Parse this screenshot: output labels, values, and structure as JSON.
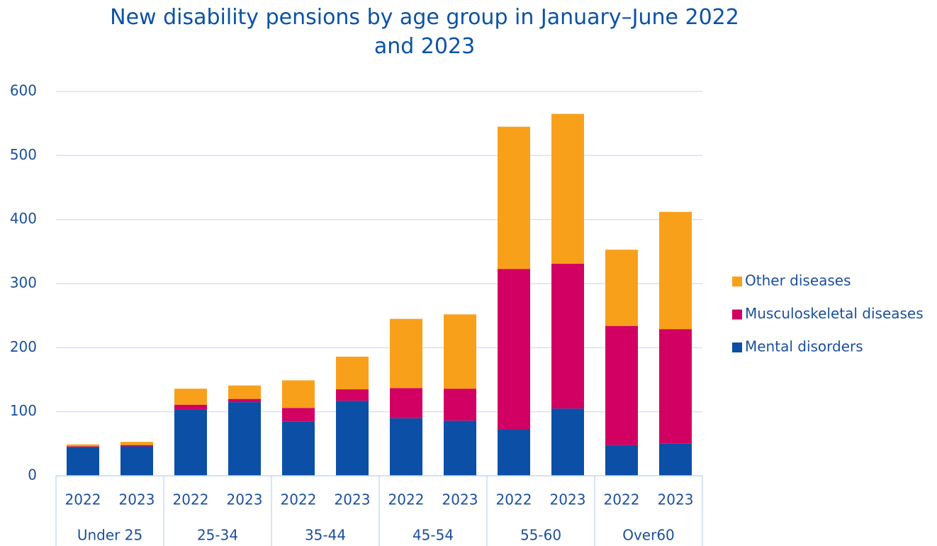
{
  "chart_data": {
    "type": "stacked_bar",
    "title": "New disability pensions by age group in January–June 2022 and 2023",
    "categories": [
      "2022",
      "2023",
      "2022",
      "2023",
      "2022",
      "2023",
      "2022",
      "2023",
      "2022",
      "2023",
      "2022",
      "2023"
    ],
    "groups": [
      "Under 25",
      "25-34",
      "35-44",
      "45-54",
      "55-60",
      "Over60"
    ],
    "series": [
      {
        "name": "Mental disorders",
        "color": "#0b4fa6",
        "values": [
          45,
          46,
          103,
          115,
          85,
          117,
          90,
          86,
          73,
          105,
          48,
          50
        ]
      },
      {
        "name": "Musculoskeletal diseases",
        "color": "#d10062",
        "values": [
          1,
          2,
          8,
          5,
          21,
          18,
          47,
          50,
          250,
          226,
          186,
          179
        ]
      },
      {
        "name": "Other diseases",
        "color": "#f9a01b",
        "values": [
          3,
          5,
          25,
          21,
          43,
          51,
          108,
          116,
          222,
          234,
          119,
          183
        ]
      }
    ],
    "ylim": [
      0,
      600
    ],
    "yticks": [
      0,
      100,
      200,
      300,
      400,
      500,
      600
    ],
    "grid": true,
    "legend": "right"
  }
}
